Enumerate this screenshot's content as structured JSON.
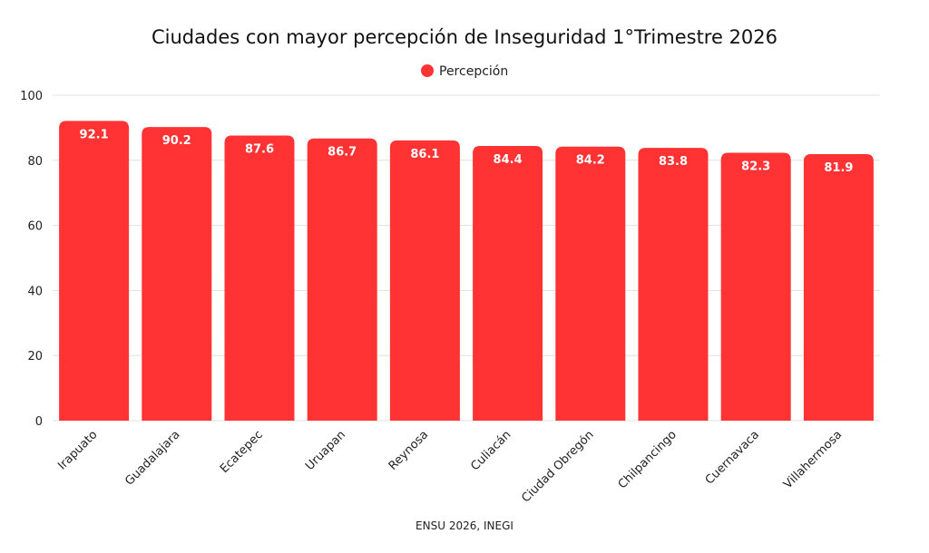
{
  "chart_data": {
    "type": "bar",
    "title": "Ciudades con mayor percepción de Inseguridad 1°Trimestre 2026",
    "legend": {
      "label": "Percepción",
      "position": "top-center"
    },
    "categories": [
      "Irapuato",
      "Guadalajara",
      "Ecatepec",
      "Uruapan",
      "Reynosa",
      "Culiacán",
      "Ciudad Obregón",
      "Chilpancingo",
      "Cuernavaca",
      "Villahermosa"
    ],
    "series": [
      {
        "name": "Percepción",
        "values": [
          92.1,
          90.2,
          87.6,
          86.7,
          86.1,
          84.4,
          84.2,
          83.8,
          82.3,
          81.9
        ],
        "color": "#ff3333"
      }
    ],
    "data_labels": [
      "92.1",
      "90.2",
      "87.6",
      "86.7",
      "86.1",
      "84.4",
      "84.2",
      "83.8",
      "82.3",
      "81.9"
    ],
    "yticks": [
      "0",
      "20",
      "40",
      "60",
      "80",
      "100"
    ],
    "ylim": [
      0,
      100
    ],
    "grid": true,
    "xlabel": "",
    "ylabel": "",
    "source": "ENSU 2026, INEGI"
  }
}
